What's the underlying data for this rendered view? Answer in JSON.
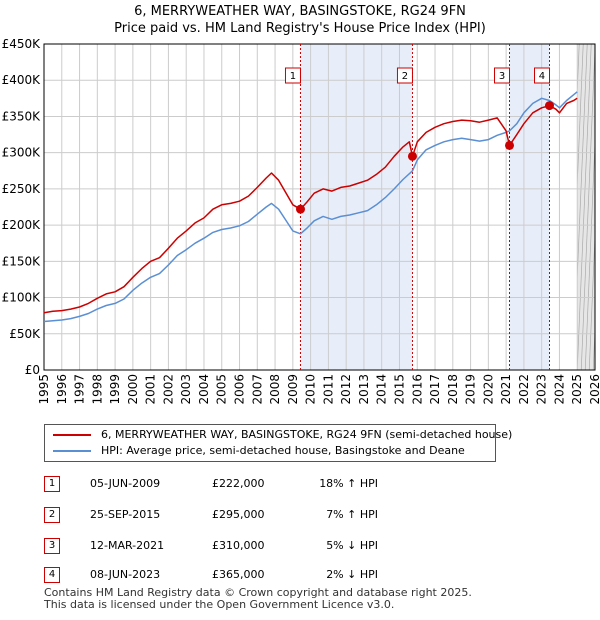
{
  "colors": {
    "property": "#cc0000",
    "hpi": "#5b8fd4",
    "band": "#e8eef9",
    "grid": "#cccccc",
    "marker": "#cc0000"
  },
  "chart_data": {
    "type": "line",
    "title": "6, MERRYWEATHER WAY, BASINGSTOKE, RG24 9FN",
    "subtitle": "Price paid vs. HM Land Registry's House Price Index (HPI)",
    "xlim": [
      1995,
      2026
    ],
    "ylim": [
      0,
      450000
    ],
    "y_ticks": [
      {
        "value": 0,
        "label": "£0"
      },
      {
        "value": 50000,
        "label": "£50K"
      },
      {
        "value": 100000,
        "label": "£100K"
      },
      {
        "value": 150000,
        "label": "£150K"
      },
      {
        "value": 200000,
        "label": "£200K"
      },
      {
        "value": 250000,
        "label": "£250K"
      },
      {
        "value": 300000,
        "label": "£300K"
      },
      {
        "value": 350000,
        "label": "£350K"
      },
      {
        "value": 400000,
        "label": "£400K"
      },
      {
        "value": 450000,
        "label": "£450K"
      }
    ],
    "x_ticks": [
      "1995",
      "1996",
      "1997",
      "1998",
      "1999",
      "2000",
      "2001",
      "2002",
      "2003",
      "2004",
      "2005",
      "2006",
      "2007",
      "2008",
      "2009",
      "2010",
      "2011",
      "2012",
      "2013",
      "2014",
      "2015",
      "2016",
      "2017",
      "2018",
      "2019",
      "2020",
      "2021",
      "2022",
      "2023",
      "2024",
      "2025",
      "2026"
    ],
    "forecast_start": 2025.0,
    "bands": [
      [
        2009.43,
        2015.73
      ],
      [
        2021.19,
        2023.44
      ]
    ],
    "series": [
      {
        "name": "6, MERRYWEATHER WAY, BASINGSTOKE, RG24 9FN (semi-detached house)",
        "color": "#cc0000",
        "points": [
          [
            1995.0,
            79000
          ],
          [
            1995.5,
            81000
          ],
          [
            1996.0,
            82000
          ],
          [
            1996.5,
            84000
          ],
          [
            1997.0,
            87000
          ],
          [
            1997.5,
            92000
          ],
          [
            1998.0,
            99000
          ],
          [
            1998.5,
            105000
          ],
          [
            1999.0,
            108000
          ],
          [
            1999.5,
            115000
          ],
          [
            2000.0,
            128000
          ],
          [
            2000.5,
            140000
          ],
          [
            2001.0,
            150000
          ],
          [
            2001.5,
            155000
          ],
          [
            2002.0,
            168000
          ],
          [
            2002.5,
            182000
          ],
          [
            2003.0,
            192000
          ],
          [
            2003.5,
            203000
          ],
          [
            2004.0,
            210000
          ],
          [
            2004.5,
            222000
          ],
          [
            2005.0,
            228000
          ],
          [
            2005.5,
            230000
          ],
          [
            2006.0,
            233000
          ],
          [
            2006.5,
            240000
          ],
          [
            2007.0,
            252000
          ],
          [
            2007.5,
            265000
          ],
          [
            2007.8,
            272000
          ],
          [
            2008.2,
            262000
          ],
          [
            2008.6,
            245000
          ],
          [
            2009.0,
            228000
          ],
          [
            2009.43,
            222000
          ],
          [
            2009.8,
            232000
          ],
          [
            2010.2,
            244000
          ],
          [
            2010.7,
            250000
          ],
          [
            2011.2,
            247000
          ],
          [
            2011.7,
            252000
          ],
          [
            2012.2,
            254000
          ],
          [
            2012.7,
            258000
          ],
          [
            2013.2,
            262000
          ],
          [
            2013.7,
            270000
          ],
          [
            2014.2,
            280000
          ],
          [
            2014.7,
            295000
          ],
          [
            2015.2,
            308000
          ],
          [
            2015.55,
            315000
          ],
          [
            2015.73,
            295000
          ],
          [
            2016.0,
            315000
          ],
          [
            2016.5,
            328000
          ],
          [
            2017.0,
            335000
          ],
          [
            2017.5,
            340000
          ],
          [
            2018.0,
            343000
          ],
          [
            2018.5,
            345000
          ],
          [
            2019.0,
            344000
          ],
          [
            2019.5,
            342000
          ],
          [
            2020.0,
            345000
          ],
          [
            2020.5,
            348000
          ],
          [
            2021.0,
            330000
          ],
          [
            2021.19,
            310000
          ],
          [
            2021.6,
            325000
          ],
          [
            2022.0,
            340000
          ],
          [
            2022.5,
            355000
          ],
          [
            2023.0,
            362000
          ],
          [
            2023.44,
            365000
          ],
          [
            2023.8,
            360000
          ],
          [
            2024.0,
            355000
          ],
          [
            2024.4,
            368000
          ],
          [
            2024.8,
            372000
          ],
          [
            2025.0,
            375000
          ]
        ]
      },
      {
        "name": "HPI: Average price, semi-detached house, Basingstoke and Deane",
        "color": "#5b8fd4",
        "points": [
          [
            1995.0,
            67000
          ],
          [
            1995.5,
            68000
          ],
          [
            1996.0,
            69000
          ],
          [
            1996.5,
            71000
          ],
          [
            1997.0,
            74000
          ],
          [
            1997.5,
            78000
          ],
          [
            1998.0,
            84000
          ],
          [
            1998.5,
            89000
          ],
          [
            1999.0,
            92000
          ],
          [
            1999.5,
            98000
          ],
          [
            2000.0,
            110000
          ],
          [
            2000.5,
            120000
          ],
          [
            2001.0,
            128000
          ],
          [
            2001.5,
            133000
          ],
          [
            2002.0,
            145000
          ],
          [
            2002.5,
            158000
          ],
          [
            2003.0,
            166000
          ],
          [
            2003.5,
            175000
          ],
          [
            2004.0,
            182000
          ],
          [
            2004.5,
            190000
          ],
          [
            2005.0,
            194000
          ],
          [
            2005.5,
            196000
          ],
          [
            2006.0,
            199000
          ],
          [
            2006.5,
            205000
          ],
          [
            2007.0,
            215000
          ],
          [
            2007.5,
            225000
          ],
          [
            2007.8,
            230000
          ],
          [
            2008.2,
            222000
          ],
          [
            2008.6,
            207000
          ],
          [
            2009.0,
            192000
          ],
          [
            2009.43,
            188000
          ],
          [
            2009.8,
            196000
          ],
          [
            2010.2,
            206000
          ],
          [
            2010.7,
            212000
          ],
          [
            2011.2,
            208000
          ],
          [
            2011.7,
            212000
          ],
          [
            2012.2,
            214000
          ],
          [
            2012.7,
            217000
          ],
          [
            2013.2,
            220000
          ],
          [
            2013.7,
            228000
          ],
          [
            2014.2,
            238000
          ],
          [
            2014.7,
            250000
          ],
          [
            2015.2,
            263000
          ],
          [
            2015.73,
            275000
          ],
          [
            2016.0,
            290000
          ],
          [
            2016.5,
            304000
          ],
          [
            2017.0,
            310000
          ],
          [
            2017.5,
            315000
          ],
          [
            2018.0,
            318000
          ],
          [
            2018.5,
            320000
          ],
          [
            2019.0,
            318000
          ],
          [
            2019.5,
            316000
          ],
          [
            2020.0,
            318000
          ],
          [
            2020.5,
            324000
          ],
          [
            2021.0,
            328000
          ],
          [
            2021.19,
            330000
          ],
          [
            2021.6,
            340000
          ],
          [
            2022.0,
            355000
          ],
          [
            2022.5,
            368000
          ],
          [
            2023.0,
            375000
          ],
          [
            2023.44,
            372000
          ],
          [
            2023.8,
            366000
          ],
          [
            2024.0,
            362000
          ],
          [
            2024.4,
            372000
          ],
          [
            2024.8,
            380000
          ],
          [
            2025.0,
            384000
          ]
        ]
      }
    ],
    "sales": [
      {
        "label": "1",
        "x": 2009.43,
        "value": 222000
      },
      {
        "label": "2",
        "x": 2015.73,
        "value": 295000
      },
      {
        "label": "3",
        "x": 2021.19,
        "value": 310000
      },
      {
        "label": "4",
        "x": 2023.44,
        "value": 365000
      }
    ]
  },
  "legend": {
    "property": "6, MERRYWEATHER WAY, BASINGSTOKE, RG24 9FN (semi-detached house)",
    "hpi": "HPI: Average price, semi-detached house, Basingstoke and Deane"
  },
  "sales_table": [
    {
      "num": "1",
      "date": "05-JUN-2009",
      "price": "£222,000",
      "hpi": "18% ↑ HPI"
    },
    {
      "num": "2",
      "date": "25-SEP-2015",
      "price": "£295,000",
      "hpi": "7% ↑ HPI"
    },
    {
      "num": "3",
      "date": "12-MAR-2021",
      "price": "£310,000",
      "hpi": "5% ↓ HPI"
    },
    {
      "num": "4",
      "date": "08-JUN-2023",
      "price": "£365,000",
      "hpi": "2% ↓ HPI"
    }
  ],
  "footer": {
    "line1": "Contains HM Land Registry data © Crown copyright and database right 2025.",
    "line2": "This data is licensed under the Open Government Licence v3.0."
  }
}
